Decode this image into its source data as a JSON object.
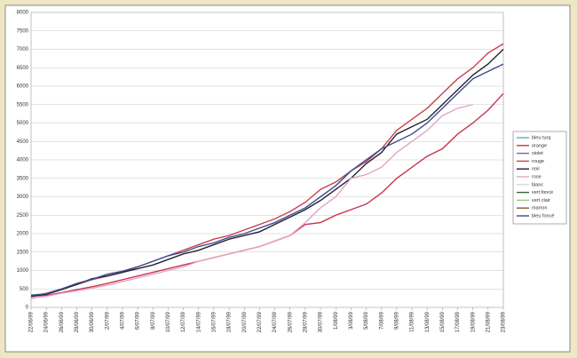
{
  "chart_data": {
    "type": "line",
    "categories": [
      "22/06/99",
      "24/06/99",
      "26/06/99",
      "28/06/99",
      "30/06/99",
      "2/07/99",
      "4/07/99",
      "6/07/99",
      "8/07/99",
      "10/07/99",
      "12/07/99",
      "14/07/99",
      "16/07/99",
      "18/07/99",
      "20/07/99",
      "22/07/99",
      "24/07/99",
      "26/07/99",
      "28/07/99",
      "30/07/99",
      "1/08/99",
      "3/08/99",
      "5/08/99",
      "7/08/99",
      "9/08/99",
      "11/08/99",
      "13/08/99",
      "15/08/99",
      "17/08/99",
      "19/08/99",
      "21/08/99",
      "23/08/99"
    ],
    "series": [
      {
        "name": "bleu turq",
        "color": "#4fb3c8"
      },
      {
        "name": "orange",
        "color": "#c8344e",
        "values": [
          250,
          320,
          400,
          480,
          560,
          650,
          750,
          850,
          950,
          1050,
          1150,
          1250,
          1350,
          1450,
          1550,
          1650,
          1800,
          1950,
          2250,
          2300,
          2500,
          2650,
          2800,
          3100,
          3500,
          3800,
          4100,
          4300,
          4700,
          5000,
          5350,
          5800
        ]
      },
      {
        "name": "violet",
        "color": "#8a5aa8"
      },
      {
        "name": "rouge",
        "color": "#c9424f",
        "values": [
          300,
          380,
          500,
          620,
          750,
          850,
          950,
          1100,
          1250,
          1400,
          1550,
          1700,
          1850,
          1950,
          2100,
          2250,
          2400,
          2600,
          2850,
          3200,
          3400,
          3700,
          3950,
          4300,
          4800,
          5100,
          5400,
          5800,
          6200,
          6500,
          6900,
          7150
        ]
      },
      {
        "name": "noir",
        "color": "#22232e",
        "values": [
          300,
          350,
          480,
          620,
          780,
          850,
          950,
          1050,
          1150,
          1300,
          1450,
          1550,
          1700,
          1850,
          1950,
          2050,
          2250,
          2450,
          2650,
          2900,
          3200,
          3500,
          3900,
          4200,
          4700,
          4900,
          5100,
          5500,
          5900,
          6300,
          6600,
          7000
        ]
      },
      {
        "name": "rose",
        "color": "#e2a6c6",
        "values": [
          260,
          300,
          380,
          450,
          520,
          600,
          700,
          800,
          900,
          1000,
          1100,
          1250,
          1350,
          1450,
          1550,
          1650,
          1800,
          1950,
          2300,
          2700,
          3000,
          3500,
          3600,
          3800,
          4200,
          4500,
          4800,
          5200,
          5400,
          5500,
          null,
          null
        ]
      },
      {
        "name": "blanc",
        "color": "#d8d8d8"
      },
      {
        "name": "vert foncé",
        "color": "#2f6a3a"
      },
      {
        "name": "vert clair",
        "color": "#8fcf7a"
      },
      {
        "name": "marron",
        "color": "#8a5a30"
      },
      {
        "name": "bleu foncé",
        "color": "#3b4d8e",
        "values": [
          330,
          370,
          500,
          650,
          760,
          900,
          980,
          1100,
          1250,
          1400,
          1500,
          1650,
          1750,
          1900,
          2000,
          2150,
          2300,
          2500,
          2700,
          3000,
          3300,
          3700,
          4000,
          4300,
          4500,
          4700,
          5000,
          5400,
          5800,
          6200,
          6400,
          6600
        ]
      }
    ],
    "ylim": [
      0,
      8000
    ],
    "yticks": [
      0,
      500,
      1000,
      1500,
      2000,
      2500,
      3000,
      3500,
      4000,
      4500,
      5000,
      5500,
      6000,
      6500,
      7000,
      7500,
      8000
    ],
    "grid": true
  }
}
